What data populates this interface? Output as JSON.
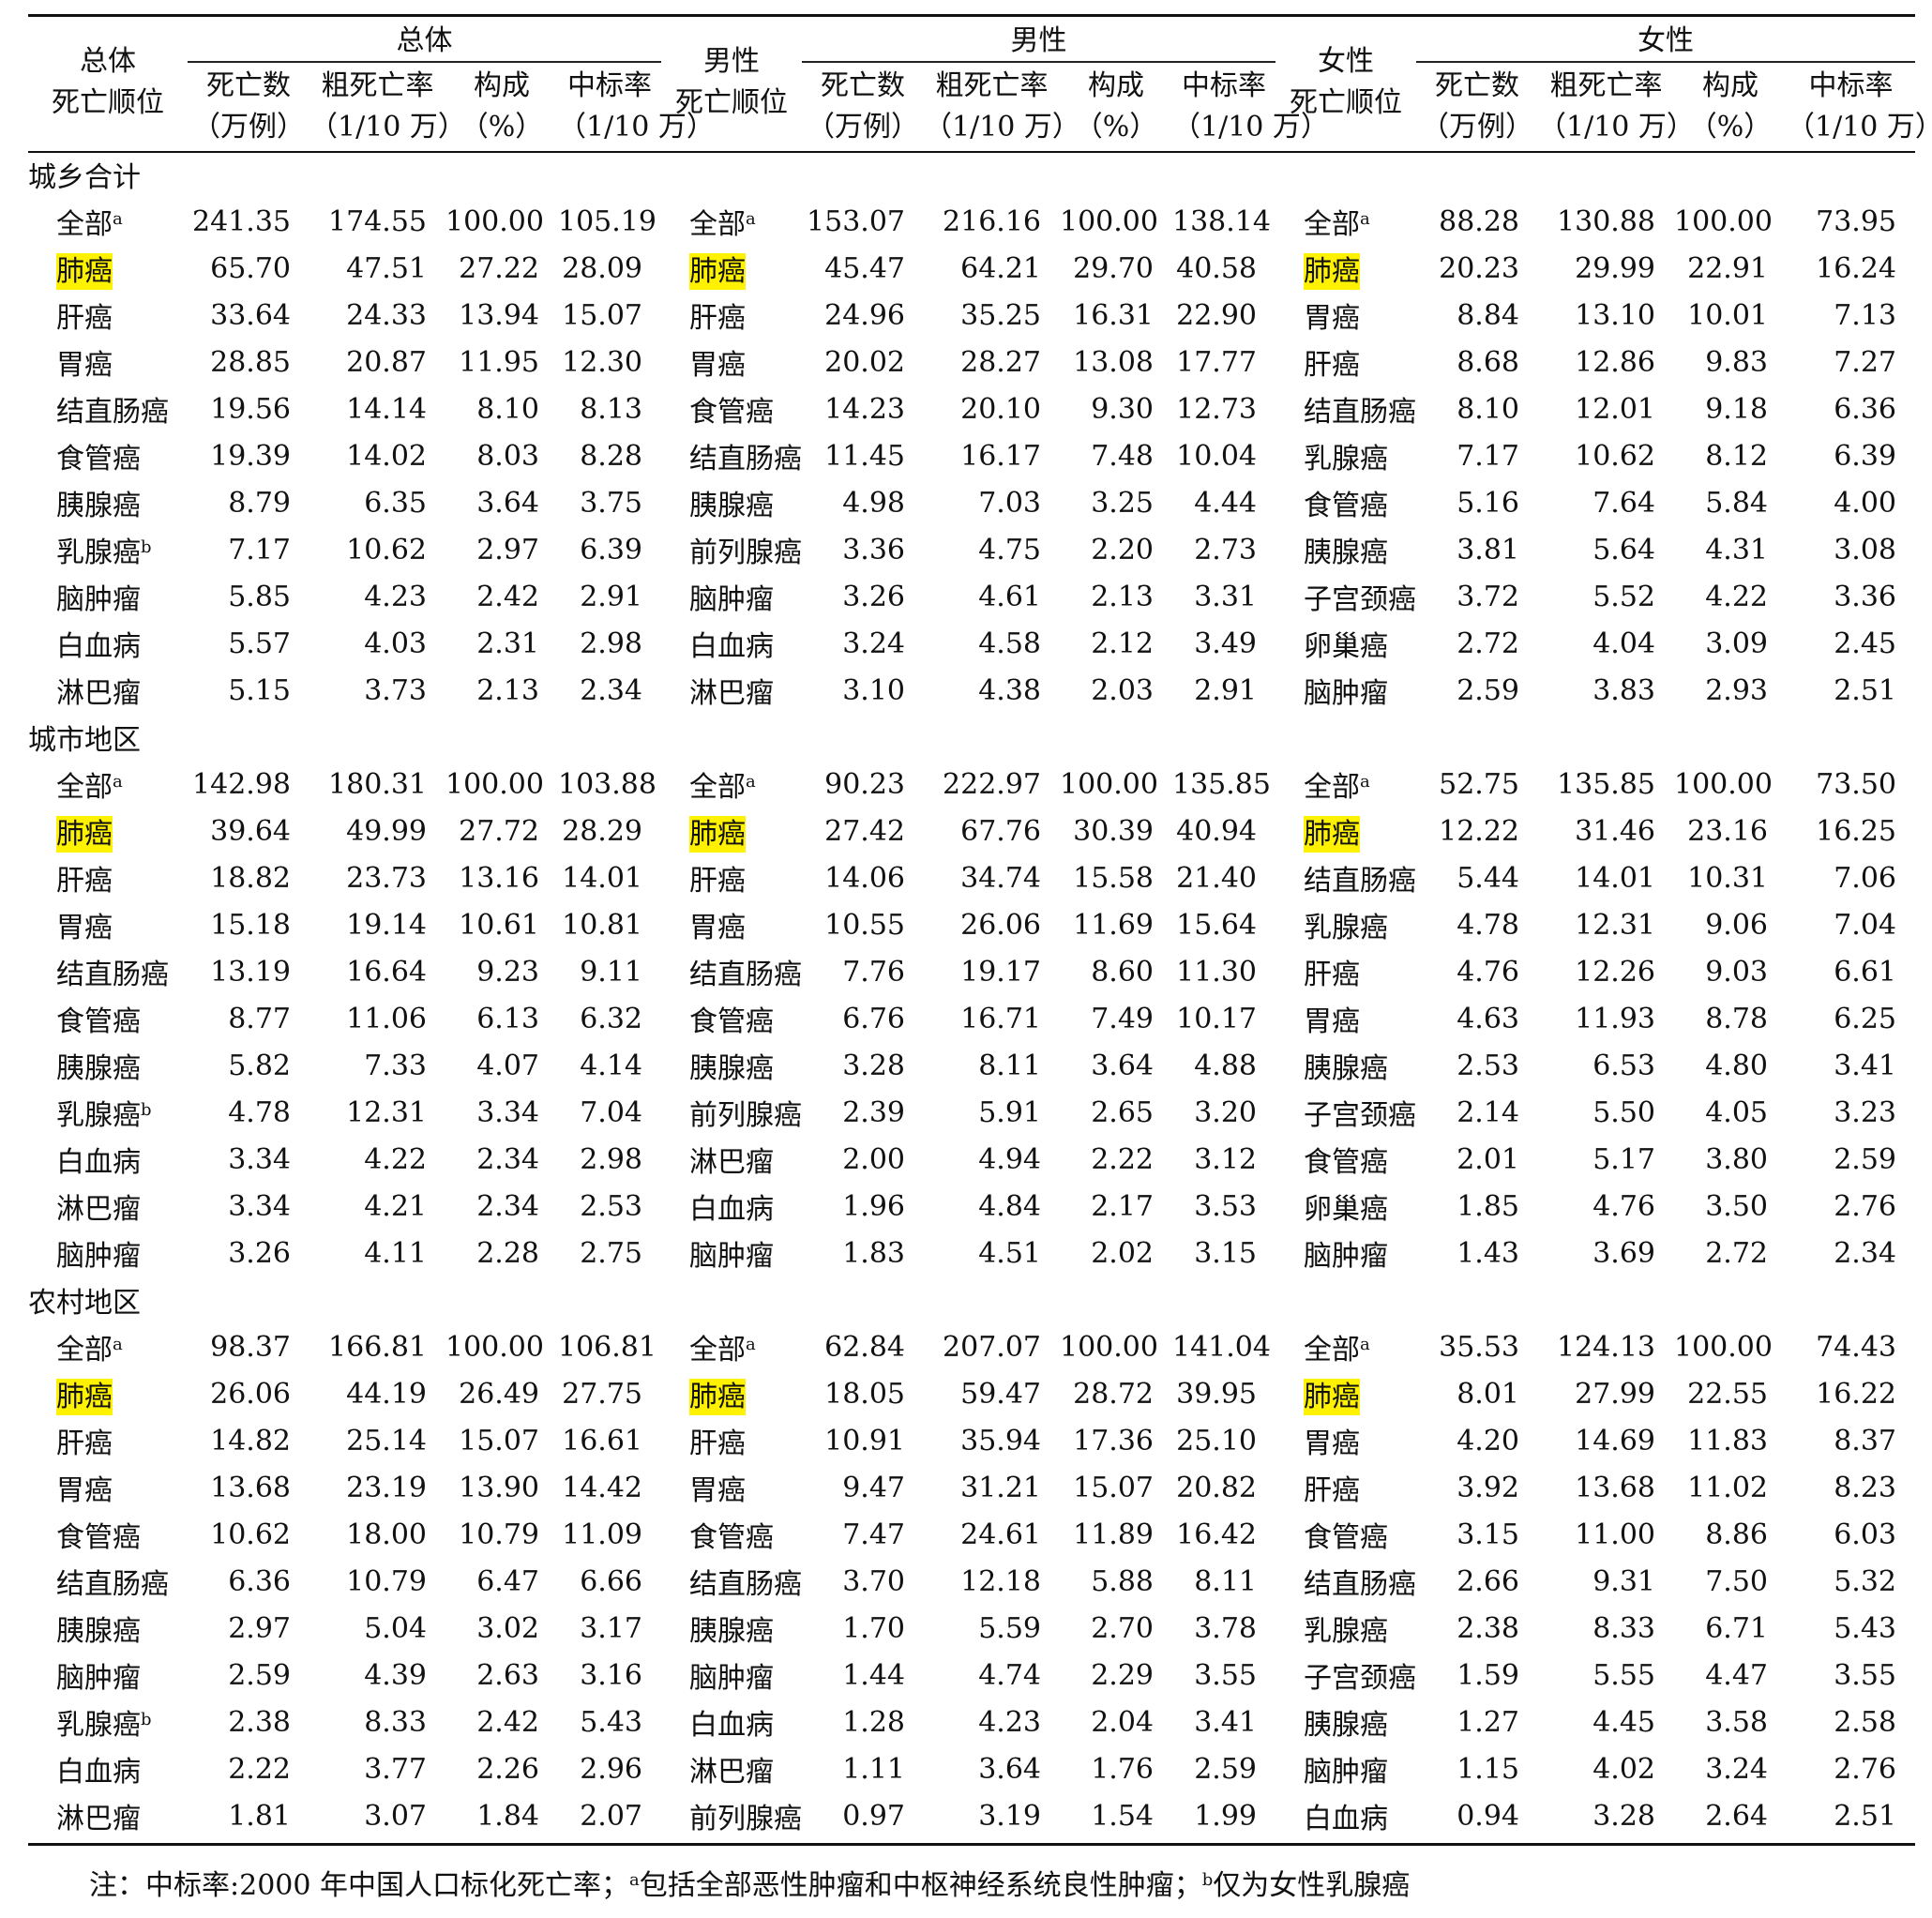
{
  "headers": {
    "col_rank_total": "总体\n死亡顺位",
    "col_rank_male": "男性\n死亡顺位",
    "col_rank_female": "女性\n死亡顺位",
    "group_total": "总体",
    "group_male": "男性",
    "group_female": "女性",
    "deaths": "死亡数\n（万例）",
    "crude": "粗死亡率\n（1/10 万）",
    "prop": "构成\n（%）",
    "asr": "中标率\n（1/10 万）"
  },
  "sections": [
    {
      "label": "城乡合计",
      "rows": [
        {
          "t": "全部",
          "ts": "a",
          "tv": [
            "241.35",
            "174.55",
            "100.00",
            "105.19"
          ],
          "m": "全部",
          "ms": "a",
          "mv": [
            "153.07",
            "216.16",
            "100.00",
            "138.14"
          ],
          "f": "全部",
          "fs": "a",
          "fv": [
            "88.28",
            "130.88",
            "100.00",
            "73.95"
          ]
        },
        {
          "t": "肺癌",
          "th": true,
          "tv": [
            "65.70",
            "47.51",
            "27.22",
            "28.09"
          ],
          "m": "肺癌",
          "mh": true,
          "mv": [
            "45.47",
            "64.21",
            "29.70",
            "40.58"
          ],
          "f": "肺癌",
          "fh": true,
          "fv": [
            "20.23",
            "29.99",
            "22.91",
            "16.24"
          ]
        },
        {
          "t": "肝癌",
          "tv": [
            "33.64",
            "24.33",
            "13.94",
            "15.07"
          ],
          "m": "肝癌",
          "mv": [
            "24.96",
            "35.25",
            "16.31",
            "22.90"
          ],
          "f": "胃癌",
          "fv": [
            "8.84",
            "13.10",
            "10.01",
            "7.13"
          ]
        },
        {
          "t": "胃癌",
          "tv": [
            "28.85",
            "20.87",
            "11.95",
            "12.30"
          ],
          "m": "胃癌",
          "mv": [
            "20.02",
            "28.27",
            "13.08",
            "17.77"
          ],
          "f": "肝癌",
          "fv": [
            "8.68",
            "12.86",
            "9.83",
            "7.27"
          ]
        },
        {
          "t": "结直肠癌",
          "tv": [
            "19.56",
            "14.14",
            "8.10",
            "8.13"
          ],
          "m": "食管癌",
          "mv": [
            "14.23",
            "20.10",
            "9.30",
            "12.73"
          ],
          "f": "结直肠癌",
          "fv": [
            "8.10",
            "12.01",
            "9.18",
            "6.36"
          ]
        },
        {
          "t": "食管癌",
          "tv": [
            "19.39",
            "14.02",
            "8.03",
            "8.28"
          ],
          "m": "结直肠癌",
          "mv": [
            "11.45",
            "16.17",
            "7.48",
            "10.04"
          ],
          "f": "乳腺癌",
          "fv": [
            "7.17",
            "10.62",
            "8.12",
            "6.39"
          ]
        },
        {
          "t": "胰腺癌",
          "tv": [
            "8.79",
            "6.35",
            "3.64",
            "3.75"
          ],
          "m": "胰腺癌",
          "mv": [
            "4.98",
            "7.03",
            "3.25",
            "4.44"
          ],
          "f": "食管癌",
          "fv": [
            "5.16",
            "7.64",
            "5.84",
            "4.00"
          ]
        },
        {
          "t": "乳腺癌",
          "ts": "b",
          "tv": [
            "7.17",
            "10.62",
            "2.97",
            "6.39"
          ],
          "m": "前列腺癌",
          "mv": [
            "3.36",
            "4.75",
            "2.20",
            "2.73"
          ],
          "f": "胰腺癌",
          "fv": [
            "3.81",
            "5.64",
            "4.31",
            "3.08"
          ]
        },
        {
          "t": "脑肿瘤",
          "tv": [
            "5.85",
            "4.23",
            "2.42",
            "2.91"
          ],
          "m": "脑肿瘤",
          "mv": [
            "3.26",
            "4.61",
            "2.13",
            "3.31"
          ],
          "f": "子宫颈癌",
          "fv": [
            "3.72",
            "5.52",
            "4.22",
            "3.36"
          ]
        },
        {
          "t": "白血病",
          "tv": [
            "5.57",
            "4.03",
            "2.31",
            "2.98"
          ],
          "m": "白血病",
          "mv": [
            "3.24",
            "4.58",
            "2.12",
            "3.49"
          ],
          "f": "卵巢癌",
          "fv": [
            "2.72",
            "4.04",
            "3.09",
            "2.45"
          ]
        },
        {
          "t": "淋巴瘤",
          "tv": [
            "5.15",
            "3.73",
            "2.13",
            "2.34"
          ],
          "m": "淋巴瘤",
          "mv": [
            "3.10",
            "4.38",
            "2.03",
            "2.91"
          ],
          "f": "脑肿瘤",
          "fv": [
            "2.59",
            "3.83",
            "2.93",
            "2.51"
          ]
        }
      ]
    },
    {
      "label": "城市地区",
      "rows": [
        {
          "t": "全部",
          "ts": "a",
          "tv": [
            "142.98",
            "180.31",
            "100.00",
            "103.88"
          ],
          "m": "全部",
          "ms": "a",
          "mv": [
            "90.23",
            "222.97",
            "100.00",
            "135.85"
          ],
          "f": "全部",
          "fs": "a",
          "fv": [
            "52.75",
            "135.85",
            "100.00",
            "73.50"
          ]
        },
        {
          "t": "肺癌",
          "th": true,
          "tv": [
            "39.64",
            "49.99",
            "27.72",
            "28.29"
          ],
          "m": "肺癌",
          "mh": true,
          "mv": [
            "27.42",
            "67.76",
            "30.39",
            "40.94"
          ],
          "f": "肺癌",
          "fh": true,
          "fv": [
            "12.22",
            "31.46",
            "23.16",
            "16.25"
          ]
        },
        {
          "t": "肝癌",
          "tv": [
            "18.82",
            "23.73",
            "13.16",
            "14.01"
          ],
          "m": "肝癌",
          "mv": [
            "14.06",
            "34.74",
            "15.58",
            "21.40"
          ],
          "f": "结直肠癌",
          "fv": [
            "5.44",
            "14.01",
            "10.31",
            "7.06"
          ]
        },
        {
          "t": "胃癌",
          "tv": [
            "15.18",
            "19.14",
            "10.61",
            "10.81"
          ],
          "m": "胃癌",
          "mv": [
            "10.55",
            "26.06",
            "11.69",
            "15.64"
          ],
          "f": "乳腺癌",
          "fv": [
            "4.78",
            "12.31",
            "9.06",
            "7.04"
          ]
        },
        {
          "t": "结直肠癌",
          "tv": [
            "13.19",
            "16.64",
            "9.23",
            "9.11"
          ],
          "m": "结直肠癌",
          "mv": [
            "7.76",
            "19.17",
            "8.60",
            "11.30"
          ],
          "f": "肝癌",
          "fv": [
            "4.76",
            "12.26",
            "9.03",
            "6.61"
          ]
        },
        {
          "t": "食管癌",
          "tv": [
            "8.77",
            "11.06",
            "6.13",
            "6.32"
          ],
          "m": "食管癌",
          "mv": [
            "6.76",
            "16.71",
            "7.49",
            "10.17"
          ],
          "f": "胃癌",
          "fv": [
            "4.63",
            "11.93",
            "8.78",
            "6.25"
          ]
        },
        {
          "t": "胰腺癌",
          "tv": [
            "5.82",
            "7.33",
            "4.07",
            "4.14"
          ],
          "m": "胰腺癌",
          "mv": [
            "3.28",
            "8.11",
            "3.64",
            "4.88"
          ],
          "f": "胰腺癌",
          "fv": [
            "2.53",
            "6.53",
            "4.80",
            "3.41"
          ]
        },
        {
          "t": "乳腺癌",
          "ts": "b",
          "tv": [
            "4.78",
            "12.31",
            "3.34",
            "7.04"
          ],
          "m": "前列腺癌",
          "mv": [
            "2.39",
            "5.91",
            "2.65",
            "3.20"
          ],
          "f": "子宫颈癌",
          "fv": [
            "2.14",
            "5.50",
            "4.05",
            "3.23"
          ]
        },
        {
          "t": "白血病",
          "tv": [
            "3.34",
            "4.22",
            "2.34",
            "2.98"
          ],
          "m": "淋巴瘤",
          "mv": [
            "2.00",
            "4.94",
            "2.22",
            "3.12"
          ],
          "f": "食管癌",
          "fv": [
            "2.01",
            "5.17",
            "3.80",
            "2.59"
          ]
        },
        {
          "t": "淋巴瘤",
          "tv": [
            "3.34",
            "4.21",
            "2.34",
            "2.53"
          ],
          "m": "白血病",
          "mv": [
            "1.96",
            "4.84",
            "2.17",
            "3.53"
          ],
          "f": "卵巢癌",
          "fv": [
            "1.85",
            "4.76",
            "3.50",
            "2.76"
          ]
        },
        {
          "t": "脑肿瘤",
          "tv": [
            "3.26",
            "4.11",
            "2.28",
            "2.75"
          ],
          "m": "脑肿瘤",
          "mv": [
            "1.83",
            "4.51",
            "2.02",
            "3.15"
          ],
          "f": "脑肿瘤",
          "fv": [
            "1.43",
            "3.69",
            "2.72",
            "2.34"
          ]
        }
      ]
    },
    {
      "label": "农村地区",
      "rows": [
        {
          "t": "全部",
          "ts": "a",
          "tv": [
            "98.37",
            "166.81",
            "100.00",
            "106.81"
          ],
          "m": "全部",
          "ms": "a",
          "mv": [
            "62.84",
            "207.07",
            "100.00",
            "141.04"
          ],
          "f": "全部",
          "fs": "a",
          "fv": [
            "35.53",
            "124.13",
            "100.00",
            "74.43"
          ]
        },
        {
          "t": "肺癌",
          "th": true,
          "tv": [
            "26.06",
            "44.19",
            "26.49",
            "27.75"
          ],
          "m": "肺癌",
          "mh": true,
          "mv": [
            "18.05",
            "59.47",
            "28.72",
            "39.95"
          ],
          "f": "肺癌",
          "fh": true,
          "fv": [
            "8.01",
            "27.99",
            "22.55",
            "16.22"
          ]
        },
        {
          "t": "肝癌",
          "tv": [
            "14.82",
            "25.14",
            "15.07",
            "16.61"
          ],
          "m": "肝癌",
          "mv": [
            "10.91",
            "35.94",
            "17.36",
            "25.10"
          ],
          "f": "胃癌",
          "fv": [
            "4.20",
            "14.69",
            "11.83",
            "8.37"
          ]
        },
        {
          "t": "胃癌",
          "tv": [
            "13.68",
            "23.19",
            "13.90",
            "14.42"
          ],
          "m": "胃癌",
          "mv": [
            "9.47",
            "31.21",
            "15.07",
            "20.82"
          ],
          "f": "肝癌",
          "fv": [
            "3.92",
            "13.68",
            "11.02",
            "8.23"
          ]
        },
        {
          "t": "食管癌",
          "tv": [
            "10.62",
            "18.00",
            "10.79",
            "11.09"
          ],
          "m": "食管癌",
          "mv": [
            "7.47",
            "24.61",
            "11.89",
            "16.42"
          ],
          "f": "食管癌",
          "fv": [
            "3.15",
            "11.00",
            "8.86",
            "6.03"
          ]
        },
        {
          "t": "结直肠癌",
          "tv": [
            "6.36",
            "10.79",
            "6.47",
            "6.66"
          ],
          "m": "结直肠癌",
          "mv": [
            "3.70",
            "12.18",
            "5.88",
            "8.11"
          ],
          "f": "结直肠癌",
          "fv": [
            "2.66",
            "9.31",
            "7.50",
            "5.32"
          ]
        },
        {
          "t": "胰腺癌",
          "tv": [
            "2.97",
            "5.04",
            "3.02",
            "3.17"
          ],
          "m": "胰腺癌",
          "mv": [
            "1.70",
            "5.59",
            "2.70",
            "3.78"
          ],
          "f": "乳腺癌",
          "fv": [
            "2.38",
            "8.33",
            "6.71",
            "5.43"
          ]
        },
        {
          "t": "脑肿瘤",
          "tv": [
            "2.59",
            "4.39",
            "2.63",
            "3.16"
          ],
          "m": "脑肿瘤",
          "mv": [
            "1.44",
            "4.74",
            "2.29",
            "3.55"
          ],
          "f": "子宫颈癌",
          "fv": [
            "1.59",
            "5.55",
            "4.47",
            "3.55"
          ]
        },
        {
          "t": "乳腺癌",
          "ts": "b",
          "tv": [
            "2.38",
            "8.33",
            "2.42",
            "5.43"
          ],
          "m": "白血病",
          "mv": [
            "1.28",
            "4.23",
            "2.04",
            "3.41"
          ],
          "f": "胰腺癌",
          "fv": [
            "1.27",
            "4.45",
            "3.58",
            "2.58"
          ]
        },
        {
          "t": "白血病",
          "tv": [
            "2.22",
            "3.77",
            "2.26",
            "2.96"
          ],
          "m": "淋巴瘤",
          "mv": [
            "1.11",
            "3.64",
            "1.76",
            "2.59"
          ],
          "f": "脑肿瘤",
          "fv": [
            "1.15",
            "4.02",
            "3.24",
            "2.76"
          ]
        },
        {
          "t": "淋巴瘤",
          "tv": [
            "1.81",
            "3.07",
            "1.84",
            "2.07"
          ],
          "m": "前列腺癌",
          "mv": [
            "0.97",
            "3.19",
            "1.54",
            "1.99"
          ],
          "f": "白血病",
          "fv": [
            "0.94",
            "3.28",
            "2.64",
            "2.51"
          ]
        }
      ]
    }
  ],
  "note": {
    "prefix": "注：中标率:2000 年中国人口标化死亡率；",
    "a_mark": "a",
    "a_text": "包括全部恶性肿瘤和中枢神经系统良性肿瘤；",
    "b_mark": "b",
    "b_text": "仅为女性乳腺癌"
  },
  "colors": {
    "highlight": "#fff200",
    "rule": "#111111"
  }
}
